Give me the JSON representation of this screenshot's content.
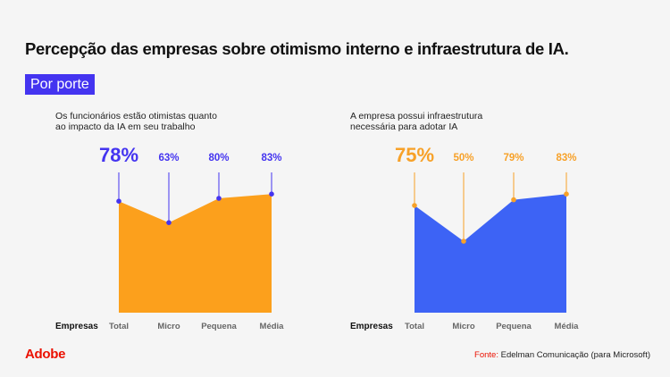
{
  "title": "Percepção das empresas sobre otimismo interno e infraestrutura de IA.",
  "tag": "Por porte",
  "logo": "Adobe",
  "source": {
    "label": "Fonte:",
    "text": "Edelman Comunicação (para Microsoft)"
  },
  "colors": {
    "orange": "#fca01c",
    "blue": "#3d63f5",
    "indigo": "#4434f0",
    "adobe_red": "#eb1000"
  },
  "chart_data": [
    {
      "type": "area",
      "title": "Os funcionários estão otimistas quanto ao impacto da IA em seu trabalho",
      "title_lines": [
        "Os funcionários estão otimistas quanto",
        "ao impacto da IA em seu trabalho"
      ],
      "xlabel": "Empresas",
      "categories": [
        "Total",
        "Micro",
        "Pequena",
        "Média"
      ],
      "values": [
        78,
        63,
        80,
        83
      ],
      "data_labels": [
        "78%",
        "63%",
        "80%",
        "83%"
      ],
      "fill_color": "#fca01c",
      "label_color": "#4434f0",
      "ylim": [
        0,
        100
      ],
      "grid": false
    },
    {
      "type": "area",
      "title": "A empresa possui infraestrutura necessária para adotar IA",
      "title_lines": [
        "A empresa possui infraestrutura",
        "necessária para adotar IA"
      ],
      "xlabel": "Empresas",
      "categories": [
        "Total",
        "Micro",
        "Pequena",
        "Média"
      ],
      "values": [
        75,
        50,
        79,
        83
      ],
      "data_labels": [
        "75%",
        "50%",
        "79%",
        "83%"
      ],
      "fill_color": "#3d63f5",
      "label_color": "#f7a128",
      "ylim": [
        0,
        100
      ],
      "grid": false
    }
  ]
}
